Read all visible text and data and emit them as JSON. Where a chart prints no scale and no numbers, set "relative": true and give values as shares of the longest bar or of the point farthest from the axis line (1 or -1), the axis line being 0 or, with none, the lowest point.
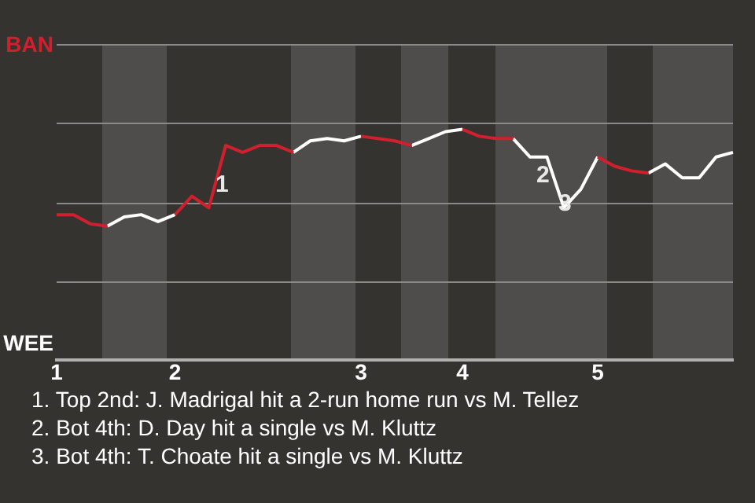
{
  "chart_data": {
    "type": "line",
    "relative": true,
    "categories": [
      "1",
      null,
      null,
      null,
      null,
      null,
      null,
      "2",
      null,
      null,
      null,
      null,
      null,
      null,
      null,
      null,
      null,
      null,
      "3",
      null,
      null,
      null,
      null,
      null,
      "4",
      null,
      null,
      null,
      null,
      null,
      null,
      null,
      "5",
      null,
      null,
      null,
      null,
      null,
      null,
      null,
      null
    ],
    "series": [
      {
        "color": "#d0202e",
        "values": [
          0.63,
          0.63,
          0.59,
          0.58,
          null,
          null,
          null,
          0.63,
          0.71,
          0.66,
          0.93,
          0.9,
          0.93,
          0.93,
          0.9,
          null,
          null,
          null,
          0.97,
          0.96,
          0.95,
          0.93,
          null,
          null,
          1,
          0.97,
          0.96,
          0.96,
          null,
          null,
          null,
          null,
          0.88,
          0.84,
          0.82,
          0.81,
          null,
          null,
          null,
          null,
          null
        ]
      },
      {
        "color": "#ffffff",
        "values": [
          null,
          null,
          null,
          0.58,
          0.62,
          0.63,
          0.6,
          0.63,
          null,
          null,
          null,
          null,
          null,
          null,
          0.9,
          0.95,
          0.96,
          0.95,
          0.97,
          null,
          null,
          0.93,
          0.96,
          0.99,
          1,
          null,
          null,
          0.96,
          0.88,
          0.88,
          0.66,
          0.74,
          0.88,
          null,
          null,
          0.81,
          0.85,
          0.79,
          0.79,
          0.88,
          0.9
        ]
      }
    ],
    "annotations": [
      "BAN",
      "WEE",
      "1",
      "2",
      "3",
      "1. Top 2nd: J. Madrigal hit a 2-run home run vs M. Tellez",
      "2. Bot 4th: D. Day hit a single vs M. Kluttz",
      "3. Bot 4th: T. Choate hit a single vs M. Kluttz"
    ],
    "ref_lines": [
      {
        "axis": "y",
        "value": 0.34,
        "color": "#8a8a8a"
      },
      {
        "axis": "y",
        "value": 0.685,
        "color": "#8a8a8a"
      },
      {
        "axis": "y",
        "value": 1.03,
        "color": "#8a8a8a"
      }
    ],
    "legend": false,
    "marker": "none"
  }
}
